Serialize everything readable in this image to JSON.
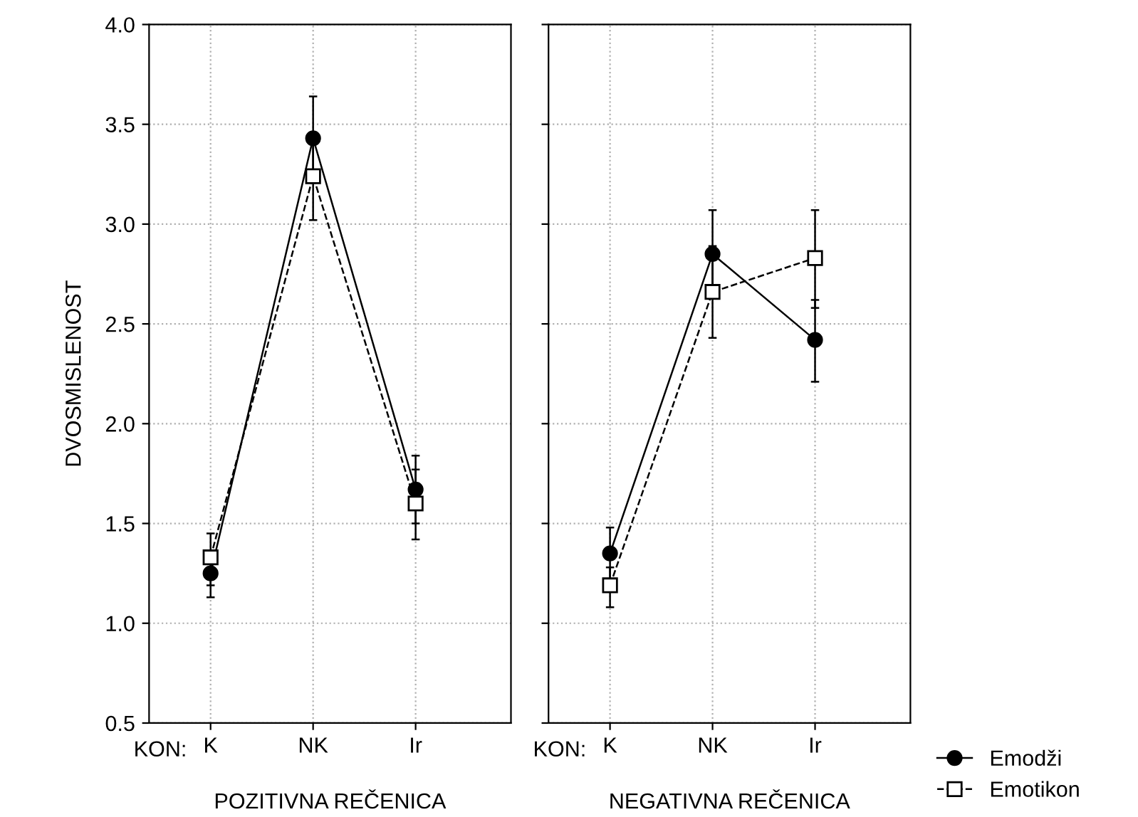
{
  "chart_data": [
    {
      "type": "line",
      "xlabel": "POZITIVNA REČENICA",
      "ylabel": "DVOSMISLENOST",
      "categories": [
        "K",
        "NK",
        "Ir"
      ],
      "annotations": [
        "KON:"
      ],
      "ylim": [
        0.5,
        4.0
      ],
      "yticks": [
        {
          "value": 0.5,
          "label": "0.5"
        },
        {
          "value": 1.0,
          "label": "1.0"
        },
        {
          "value": 1.5,
          "label": "1.5"
        },
        {
          "value": 2.0,
          "label": "2.0"
        },
        {
          "value": 2.5,
          "label": "2.5"
        },
        {
          "value": 3.0,
          "label": "3.0"
        },
        {
          "value": 3.5,
          "label": "3.5"
        },
        {
          "value": 4.0,
          "label": "4.0"
        }
      ],
      "grid": true,
      "series": [
        {
          "color": "#000000",
          "marker": "circle",
          "line_style": "solid",
          "values": [
            1.25,
            3.43,
            1.67
          ],
          "errors": [
            [
              1.13,
              1.36
            ],
            [
              3.22,
              3.64
            ],
            [
              1.5,
              1.84
            ]
          ]
        },
        {
          "color": "#000000",
          "marker": "square",
          "line_style": "dashed",
          "values": [
            1.33,
            3.24,
            1.6
          ],
          "errors": [
            [
              1.19,
              1.45
            ],
            [
              3.02,
              3.45
            ],
            [
              1.42,
              1.77
            ]
          ]
        }
      ]
    },
    {
      "type": "line",
      "xlabel": "NEGATIVNA REČENICA",
      "categories": [
        "K",
        "NK",
        "Ir"
      ],
      "annotations": [
        "KON:"
      ],
      "ylim": [
        0.5,
        4.0
      ],
      "yticks": [
        {
          "value": 0.5,
          "label": null
        },
        {
          "value": 1.0,
          "label": null
        },
        {
          "value": 1.5,
          "label": null
        },
        {
          "value": 2.0,
          "label": null
        },
        {
          "value": 2.5,
          "label": null
        },
        {
          "value": 3.0,
          "label": null
        },
        {
          "value": 3.5,
          "label": null
        },
        {
          "value": 4.0,
          "label": null
        }
      ],
      "tick_labels": "x",
      "grid": true,
      "legend": "bottom right",
      "series": [
        {
          "name": "Emodži",
          "color": "#000000",
          "marker": "circle",
          "line_style": "solid",
          "values": [
            1.35,
            2.85,
            2.42
          ],
          "errors": [
            [
              1.22,
              1.48
            ],
            [
              2.63,
              3.07
            ],
            [
              2.21,
              2.62
            ]
          ]
        },
        {
          "name": "Emotikon",
          "color": "#000000",
          "marker": "square",
          "line_style": "dashed",
          "values": [
            1.19,
            2.66,
            2.83
          ],
          "errors": [
            [
              1.08,
              1.28
            ],
            [
              2.43,
              2.89
            ],
            [
              2.58,
              3.07
            ]
          ]
        }
      ]
    }
  ]
}
